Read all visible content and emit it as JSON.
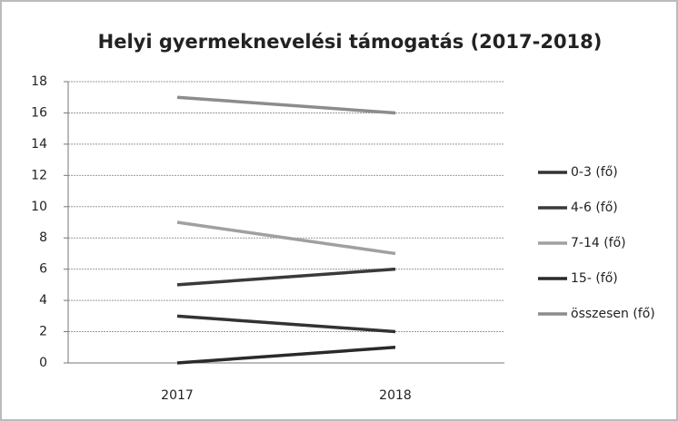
{
  "chart_data": {
    "type": "line",
    "title": "Helyi gyermeknevelési támogatás (2017-2018)",
    "categories": [
      "2017",
      "2018"
    ],
    "series": [
      {
        "name": "0-3 (fő)",
        "color": "#333333",
        "values": [
          3,
          2
        ]
      },
      {
        "name": "4-6 (fő)",
        "color": "#3a3a3a",
        "values": [
          5,
          6
        ]
      },
      {
        "name": "7-14 (fő)",
        "color": "#a0a0a0",
        "values": [
          9,
          7
        ]
      },
      {
        "name": "15- (fő)",
        "color": "#2a2a2a",
        "values": [
          0,
          1
        ]
      },
      {
        "name": "összesen (fő)",
        "color": "#8c8c8c",
        "values": [
          17,
          16
        ]
      }
    ],
    "ylim": [
      0,
      18
    ],
    "yticks": [
      0,
      2,
      4,
      6,
      8,
      10,
      12,
      14,
      16,
      18
    ],
    "grid": true,
    "legend": "right"
  }
}
